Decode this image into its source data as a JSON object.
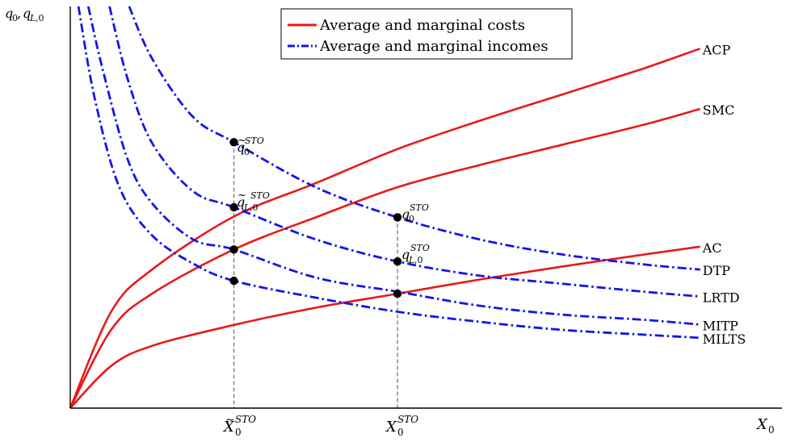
{
  "chart_data": {
    "type": "line",
    "xlabel": "X_0",
    "ylabel": "q_0, q_{L,0}",
    "x_ticks": [
      {
        "label": "X̃_0^STO",
        "x": 1.0
      },
      {
        "label": "X_0^STO",
        "x": 2.0
      }
    ],
    "xlim": [
      0,
      4.35
    ],
    "ylim": [
      0,
      10
    ],
    "legend": [
      {
        "label": "Average and marginal costs",
        "color": "#e8191b",
        "style": "solid"
      },
      {
        "label": "Average and marginal incomes",
        "color": "#1515e6",
        "style": "dash-dot"
      }
    ],
    "series": [
      {
        "name": "ACP",
        "group": "cost",
        "end_x": 3.85,
        "points": [
          [
            0,
            0
          ],
          [
            0.25,
            2.4
          ],
          [
            0.5,
            3.45
          ],
          [
            1,
            4.77
          ],
          [
            1.5,
            5.6
          ],
          [
            2,
            6.45
          ],
          [
            2.5,
            7.15
          ],
          [
            3,
            7.8
          ],
          [
            3.5,
            8.45
          ],
          [
            3.85,
            8.95
          ]
        ]
      },
      {
        "name": "SMC",
        "group": "cost",
        "end_x": 3.85,
        "points": [
          [
            0,
            0
          ],
          [
            0.25,
            1.95
          ],
          [
            0.5,
            2.85
          ],
          [
            1,
            3.95
          ],
          [
            1.5,
            4.75
          ],
          [
            2,
            5.5
          ],
          [
            2.5,
            6.05
          ],
          [
            3,
            6.55
          ],
          [
            3.5,
            7.05
          ],
          [
            3.85,
            7.45
          ]
        ]
      },
      {
        "name": "AC",
        "group": "cost",
        "end_x": 3.85,
        "points": [
          [
            0,
            0
          ],
          [
            0.25,
            1.05
          ],
          [
            0.5,
            1.55
          ],
          [
            1,
            2.07
          ],
          [
            1.5,
            2.5
          ],
          [
            2,
            2.85
          ],
          [
            2.5,
            3.2
          ],
          [
            3,
            3.52
          ],
          [
            3.5,
            3.82
          ],
          [
            3.85,
            4.02
          ]
        ]
      },
      {
        "name": "DTP",
        "group": "income",
        "end_x": 3.85,
        "points": [
          [
            0.36,
            10
          ],
          [
            0.5,
            8.7
          ],
          [
            0.75,
            7.25
          ],
          [
            1,
            6.62
          ],
          [
            1.5,
            5.5
          ],
          [
            2,
            4.75
          ],
          [
            2.5,
            4.2
          ],
          [
            3,
            3.83
          ],
          [
            3.5,
            3.58
          ],
          [
            3.85,
            3.45
          ]
        ]
      },
      {
        "name": "LRTD",
        "group": "income",
        "end_x": 3.85,
        "points": [
          [
            0.24,
            10
          ],
          [
            0.35,
            8.2
          ],
          [
            0.5,
            6.6
          ],
          [
            0.75,
            5.4
          ],
          [
            1,
            5.0
          ],
          [
            1.5,
            4.2
          ],
          [
            2,
            3.65
          ],
          [
            2.5,
            3.3
          ],
          [
            3,
            3.1
          ],
          [
            3.5,
            2.9
          ],
          [
            3.85,
            2.78
          ]
        ]
      },
      {
        "name": "MITP",
        "group": "income",
        "end_x": 3.85,
        "points": [
          [
            0.11,
            10
          ],
          [
            0.2,
            8.4
          ],
          [
            0.35,
            6.2
          ],
          [
            0.5,
            5.1
          ],
          [
            0.75,
            4.2
          ],
          [
            1,
            3.95
          ],
          [
            1.5,
            3.25
          ],
          [
            2,
            2.9
          ],
          [
            2.5,
            2.55
          ],
          [
            3,
            2.33
          ],
          [
            3.5,
            2.2
          ],
          [
            3.85,
            2.08
          ]
        ]
      },
      {
        "name": "MILTS",
        "group": "income",
        "end_x": 3.85,
        "points": [
          [
            0.05,
            10
          ],
          [
            0.15,
            7.7
          ],
          [
            0.3,
            5.5
          ],
          [
            0.5,
            4.3
          ],
          [
            0.75,
            3.6
          ],
          [
            1,
            3.17
          ],
          [
            1.5,
            2.75
          ],
          [
            2,
            2.4
          ],
          [
            2.5,
            2.15
          ],
          [
            3,
            1.95
          ],
          [
            3.5,
            1.83
          ],
          [
            3.85,
            1.75
          ]
        ]
      }
    ],
    "marked_points": [
      {
        "label": "q̃_0^STO",
        "x": 1.0,
        "y": 6.62
      },
      {
        "label": "q̃_{L,0}^STO",
        "x": 1.0,
        "y": 5.0
      },
      {
        "label": "",
        "x": 1.0,
        "y": 3.95
      },
      {
        "label": "",
        "x": 1.0,
        "y": 3.17
      },
      {
        "label": "q_0^STO",
        "x": 2.0,
        "y": 4.75
      },
      {
        "label": "q_{L,0}^STO",
        "x": 2.0,
        "y": 3.65
      },
      {
        "label": "",
        "x": 2.0,
        "y": 2.85
      }
    ]
  }
}
